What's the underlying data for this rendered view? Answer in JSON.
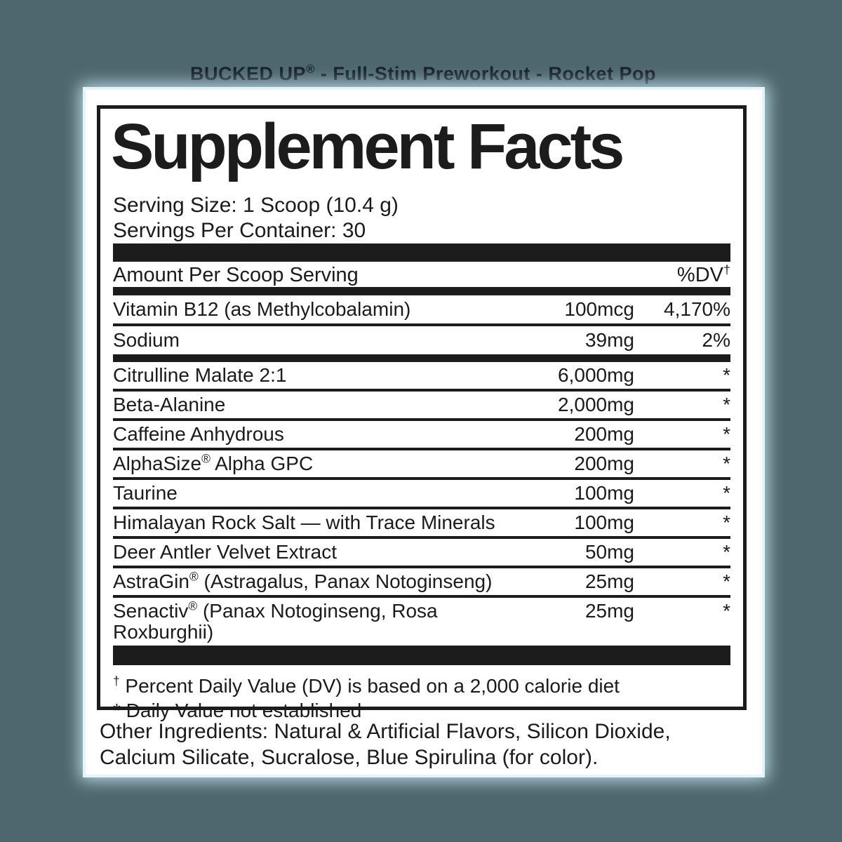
{
  "page": {
    "product_title": "BUCKED UP® - Full-Stim Preworkout - Rocket Pop",
    "background_color": "#4e666d",
    "product_title_color": "#151f2a",
    "label_ink_color": "#1c1c1c",
    "card_color": "#ffffff"
  },
  "label": {
    "heading": "Supplement Facts",
    "serving_size": "Serving Size: 1 Scoop (10.4 g)",
    "servings_per_container": "Servings Per Container: 30",
    "columns": {
      "amount_header": "Amount Per Scoop Serving",
      "dv_header": "%DV†"
    },
    "dv_rows": [
      {
        "name": "Vitamin B12 (as Methylcobalamin)",
        "amount": "100mcg",
        "dv": "4,170%"
      },
      {
        "name": "Sodium",
        "amount": "39mg",
        "dv": "2%"
      }
    ],
    "blend_rows": [
      {
        "name": "Citrulline Malate 2:1",
        "amount": "6,000mg",
        "dv": "*"
      },
      {
        "name": "Beta-Alanine",
        "amount": "2,000mg",
        "dv": "*"
      },
      {
        "name": "Caffeine Anhydrous",
        "amount": "200mg",
        "dv": "*"
      },
      {
        "name": "AlphaSize® Alpha GPC",
        "amount": "200mg",
        "dv": "*"
      },
      {
        "name": "Taurine",
        "amount": "100mg",
        "dv": "*"
      },
      {
        "name": "Himalayan Rock Salt — with Trace Minerals",
        "amount": "100mg",
        "dv": "*"
      },
      {
        "name": "Deer Antler Velvet Extract",
        "amount": "50mg",
        "dv": "*"
      },
      {
        "name": "AstraGin® (Astragalus, Panax Notoginseng)",
        "amount": "25mg",
        "dv": "*"
      },
      {
        "name": "Senactiv® (Panax Notoginseng, Rosa Roxburghii)",
        "amount": "25mg",
        "dv": "*"
      }
    ],
    "footnotes": {
      "daily_value": "† Percent Daily Value (DV) is based on a 2,000 calorie diet",
      "not_established": "* Daily Value not established"
    },
    "other_ingredients": "Other Ingredients: Natural & Artificial Flavors, Silicon Dioxide, Calcium Silicate, Sucralose, Blue Spirulina (for color)."
  }
}
